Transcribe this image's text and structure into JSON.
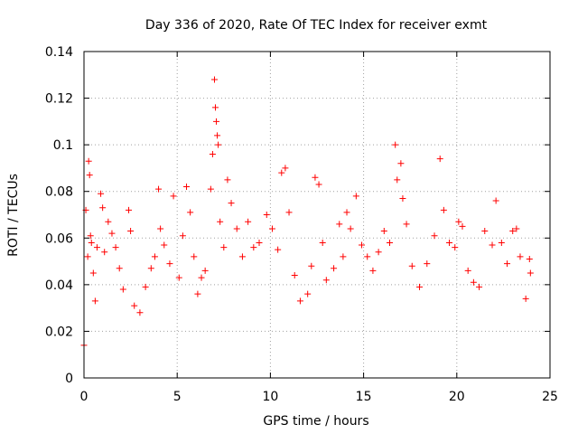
{
  "chart_data": {
    "type": "scatter",
    "title": "Day 336 of 2020, Rate Of TEC Index for receiver exmt",
    "xlabel": "GPS time / hours",
    "ylabel": "ROTI / TECUs",
    "xlim": [
      0,
      25
    ],
    "ylim": [
      0,
      0.14
    ],
    "x_ticks": [
      "0",
      "5",
      "10",
      "15",
      "20",
      "25"
    ],
    "y_ticks": [
      "0",
      "0.02",
      "0.04",
      "0.06",
      "0.08",
      "0.1",
      "0.12",
      "0.14"
    ],
    "grid": true,
    "marker": "+",
    "color": "#ff0000",
    "series": [
      {
        "points": [
          [
            0.0,
            0.014
          ],
          [
            0.1,
            0.072
          ],
          [
            0.2,
            0.052
          ],
          [
            0.25,
            0.093
          ],
          [
            0.3,
            0.087
          ],
          [
            0.35,
            0.061
          ],
          [
            0.4,
            0.058
          ],
          [
            0.5,
            0.045
          ],
          [
            0.6,
            0.033
          ],
          [
            0.7,
            0.056
          ],
          [
            0.9,
            0.079
          ],
          [
            1.0,
            0.073
          ],
          [
            1.1,
            0.054
          ],
          [
            1.3,
            0.067
          ],
          [
            1.5,
            0.062
          ],
          [
            1.7,
            0.056
          ],
          [
            1.9,
            0.047
          ],
          [
            2.1,
            0.038
          ],
          [
            2.4,
            0.072
          ],
          [
            2.5,
            0.063
          ],
          [
            2.7,
            0.031
          ],
          [
            3.0,
            0.028
          ],
          [
            3.3,
            0.039
          ],
          [
            3.6,
            0.047
          ],
          [
            3.8,
            0.052
          ],
          [
            4.0,
            0.081
          ],
          [
            4.1,
            0.064
          ],
          [
            4.3,
            0.057
          ],
          [
            4.6,
            0.049
          ],
          [
            4.8,
            0.078
          ],
          [
            5.1,
            0.043
          ],
          [
            5.3,
            0.061
          ],
          [
            5.5,
            0.082
          ],
          [
            5.7,
            0.071
          ],
          [
            5.9,
            0.052
          ],
          [
            6.1,
            0.036
          ],
          [
            6.3,
            0.043
          ],
          [
            6.5,
            0.046
          ],
          [
            6.8,
            0.081
          ],
          [
            6.9,
            0.096
          ],
          [
            7.0,
            0.128
          ],
          [
            7.05,
            0.116
          ],
          [
            7.1,
            0.11
          ],
          [
            7.15,
            0.104
          ],
          [
            7.2,
            0.1
          ],
          [
            7.3,
            0.067
          ],
          [
            7.5,
            0.056
          ],
          [
            7.7,
            0.085
          ],
          [
            7.9,
            0.075
          ],
          [
            8.2,
            0.064
          ],
          [
            8.5,
            0.052
          ],
          [
            8.8,
            0.067
          ],
          [
            9.1,
            0.056
          ],
          [
            9.4,
            0.058
          ],
          [
            9.8,
            0.07
          ],
          [
            10.1,
            0.064
          ],
          [
            10.4,
            0.055
          ],
          [
            10.6,
            0.088
          ],
          [
            10.8,
            0.09
          ],
          [
            11.0,
            0.071
          ],
          [
            11.3,
            0.044
          ],
          [
            11.6,
            0.033
          ],
          [
            12.0,
            0.036
          ],
          [
            12.2,
            0.048
          ],
          [
            12.4,
            0.086
          ],
          [
            12.6,
            0.083
          ],
          [
            12.8,
            0.058
          ],
          [
            13.0,
            0.042
          ],
          [
            13.4,
            0.047
          ],
          [
            13.7,
            0.066
          ],
          [
            13.9,
            0.052
          ],
          [
            14.1,
            0.071
          ],
          [
            14.3,
            0.064
          ],
          [
            14.6,
            0.078
          ],
          [
            14.9,
            0.057
          ],
          [
            15.2,
            0.052
          ],
          [
            15.5,
            0.046
          ],
          [
            15.8,
            0.054
          ],
          [
            16.1,
            0.063
          ],
          [
            16.4,
            0.058
          ],
          [
            16.7,
            0.1
          ],
          [
            16.8,
            0.085
          ],
          [
            17.0,
            0.092
          ],
          [
            17.1,
            0.077
          ],
          [
            17.3,
            0.066
          ],
          [
            17.6,
            0.048
          ],
          [
            18.0,
            0.039
          ],
          [
            18.4,
            0.049
          ],
          [
            18.8,
            0.061
          ],
          [
            19.1,
            0.094
          ],
          [
            19.3,
            0.072
          ],
          [
            19.6,
            0.058
          ],
          [
            19.9,
            0.056
          ],
          [
            20.1,
            0.067
          ],
          [
            20.3,
            0.065
          ],
          [
            20.6,
            0.046
          ],
          [
            20.9,
            0.041
          ],
          [
            21.2,
            0.039
          ],
          [
            21.5,
            0.063
          ],
          [
            21.9,
            0.057
          ],
          [
            22.1,
            0.076
          ],
          [
            22.4,
            0.058
          ],
          [
            22.7,
            0.049
          ],
          [
            23.0,
            0.063
          ],
          [
            23.2,
            0.064
          ],
          [
            23.4,
            0.052
          ],
          [
            23.7,
            0.034
          ],
          [
            23.9,
            0.051
          ],
          [
            23.95,
            0.045
          ]
        ]
      }
    ]
  }
}
